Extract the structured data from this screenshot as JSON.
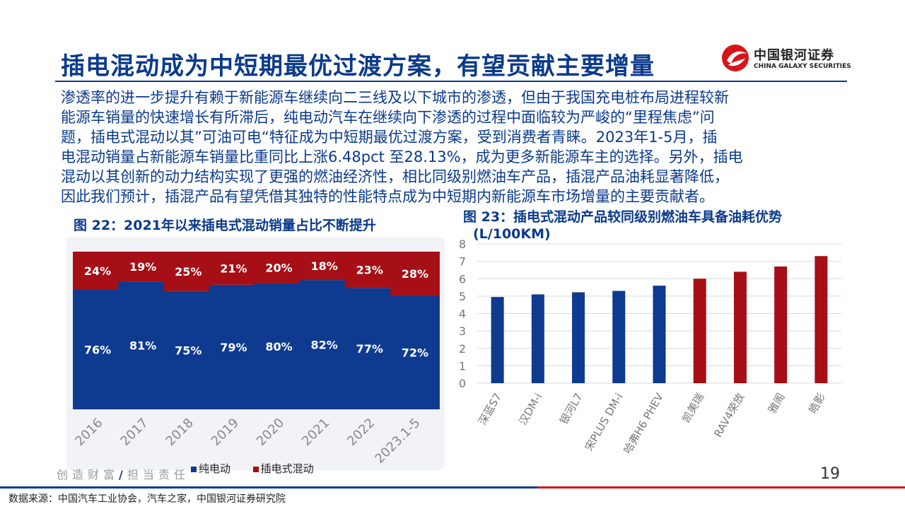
{
  "header": {
    "title": "插电混动成为中短期最优过渡方案，有望贡献主要增量",
    "logo_cn": "中国银河证券",
    "logo_en": "CHINA GALAXY SECURITIES"
  },
  "body_lines": [
    "渗透率的进一步提升有赖于新能源车继续向二三线及以下城市的渗透，但由于我国充电桩布局进程较新",
    "能源车销量的快速增长有所滞后，纯电动汽车在继续向下渗透的过程中面临较为严峻的“里程焦虑”问",
    "题，插电式混动以其”可油可电“特征成为中短期最优过渡方案，受到消费者青睐。2023年1-5月，插",
    "电混动销量占新能源车销量比重同比上涨6.48pct 至28.13%，成为更多新能源车主的选择。另外，插电",
    "混动以其创新的动力结构实现了更强的燃油经济性，相比同级别燃油车产品，插混产品油耗显著降低，",
    "因此我们预计，插混产品有望凭借其独特的性能特点成为中短期内新能源车市场增量的主要贡献者。"
  ],
  "footer": {
    "slogan_left": "创造财富",
    "slogan_sep": "/",
    "slogan_right": "担当责任",
    "page_number": "19",
    "source": "数据来源：中国汽车工业协会，汽车之家，中国银河证券研究院"
  },
  "colors": {
    "brand_blue": "#0a3a8c",
    "bev_blue": "#0e3a8f",
    "phev_red": "#a50f15",
    "logo_red": "#d7141a"
  },
  "chart_data": [
    {
      "type": "bar",
      "stacked": true,
      "percent": true,
      "title": "图 22：2021年以来插电式混动销量占比不断提升",
      "categories": [
        "2016",
        "2017",
        "2018",
        "2019",
        "2020",
        "2021",
        "2022",
        "2023.1-5"
      ],
      "series": [
        {
          "name": "纯电动",
          "color": "#0e3a8f",
          "values": [
            76,
            81,
            75,
            79,
            80,
            82,
            77,
            72
          ]
        },
        {
          "name": "插电式混动",
          "color": "#a50f15",
          "values": [
            24,
            19,
            25,
            21,
            20,
            18,
            23,
            28
          ]
        }
      ],
      "data_labels": true,
      "grid": true,
      "legend": "bottom"
    },
    {
      "type": "bar",
      "title": "图 23：插电式混动产品较同级别燃油车具备油耗优势",
      "subtitle": "(L/100KM)",
      "categories": [
        "深蓝S7",
        "汉DM-i",
        "银河L7",
        "宋PLUS DM-i",
        "哈弗H6 PHEV",
        "凯美瑞",
        "RAV4荣放",
        "雅阁",
        "皓影"
      ],
      "values": [
        4.95,
        5.1,
        5.22,
        5.3,
        5.6,
        6.0,
        6.4,
        6.7,
        7.3
      ],
      "bar_colors": [
        "#0e3a8f",
        "#0e3a8f",
        "#0e3a8f",
        "#0e3a8f",
        "#0e3a8f",
        "#a50f15",
        "#a50f15",
        "#a50f15",
        "#a50f15"
      ],
      "ylim": [
        0,
        8
      ],
      "yticks": [
        0,
        1,
        2,
        3,
        4,
        5,
        6,
        7,
        8
      ],
      "grid": true
    }
  ]
}
